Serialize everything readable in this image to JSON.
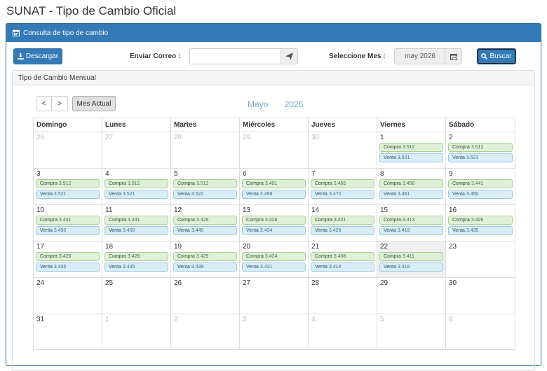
{
  "page_title": "SUNAT - Tipo de Cambio Oficial",
  "panel": {
    "title": "Consulta de tipo de cambio"
  },
  "toolbar": {
    "download_label": "Descargar",
    "email_label": "Enviar Correo :",
    "email_value": "",
    "month_label": "Seleccione Mes :",
    "month_value": "may 2026",
    "search_label": "Buscar"
  },
  "subpanel": {
    "title": "Tipo de Cambio Mensual"
  },
  "calendar": {
    "prev": "<",
    "next": ">",
    "today": "Mes Actual",
    "month": "Mayo",
    "year": "2026",
    "weekdays": [
      "Domingo",
      "Lunes",
      "Martes",
      "Miércoles",
      "Jueves",
      "Viernes",
      "Sábado"
    ],
    "compra_label": "Compra",
    "venta_label": "Venta",
    "weeks": [
      [
        {
          "d": "26",
          "other": true
        },
        {
          "d": "27",
          "other": true
        },
        {
          "d": "28",
          "other": true
        },
        {
          "d": "29",
          "other": true
        },
        {
          "d": "30",
          "other": true
        },
        {
          "d": "1",
          "c": "3.512",
          "v": "3.521"
        },
        {
          "d": "2",
          "c": "3.512",
          "v": "3.521"
        }
      ],
      [
        {
          "d": "3",
          "c": "3.512",
          "v": "3.521"
        },
        {
          "d": "4",
          "c": "3.512",
          "v": "3.521"
        },
        {
          "d": "5",
          "c": "3.512",
          "v": "3.522"
        },
        {
          "d": "6",
          "c": "3.491",
          "v": "3.498"
        },
        {
          "d": "7",
          "c": "3.465",
          "v": "3.470"
        },
        {
          "d": "8",
          "c": "3.456",
          "v": "3.461"
        },
        {
          "d": "9",
          "c": "3.441",
          "v": "3.450"
        }
      ],
      [
        {
          "d": "10",
          "c": "3.441",
          "v": "3.450"
        },
        {
          "d": "11",
          "c": "3.441",
          "v": "3.450"
        },
        {
          "d": "12",
          "c": "3.428",
          "v": "3.440"
        },
        {
          "d": "13",
          "c": "3.428",
          "v": "3.434"
        },
        {
          "d": "14",
          "c": "3.421",
          "v": "3.426"
        },
        {
          "d": "15",
          "c": "3.413",
          "v": "3.419"
        },
        {
          "d": "16",
          "c": "3.426",
          "v": "3.435"
        }
      ],
      [
        {
          "d": "17",
          "c": "3.426",
          "v": "3.435"
        },
        {
          "d": "18",
          "c": "3.426",
          "v": "3.435"
        },
        {
          "d": "19",
          "c": "3.429",
          "v": "3.439"
        },
        {
          "d": "20",
          "c": "3.424",
          "v": "3.431"
        },
        {
          "d": "21",
          "c": "3.408",
          "v": "3.414"
        },
        {
          "d": "22",
          "c": "3.411",
          "v": "3.418",
          "today": true
        },
        {
          "d": "23"
        }
      ],
      [
        {
          "d": "24"
        },
        {
          "d": "25"
        },
        {
          "d": "26"
        },
        {
          "d": "27"
        },
        {
          "d": "28"
        },
        {
          "d": "29"
        },
        {
          "d": "30"
        }
      ],
      [
        {
          "d": "31"
        },
        {
          "d": "1",
          "other": true
        },
        {
          "d": "2",
          "other": true
        },
        {
          "d": "3",
          "other": true
        },
        {
          "d": "4",
          "other": true
        },
        {
          "d": "5",
          "other": true
        },
        {
          "d": "6",
          "other": true
        }
      ]
    ]
  }
}
